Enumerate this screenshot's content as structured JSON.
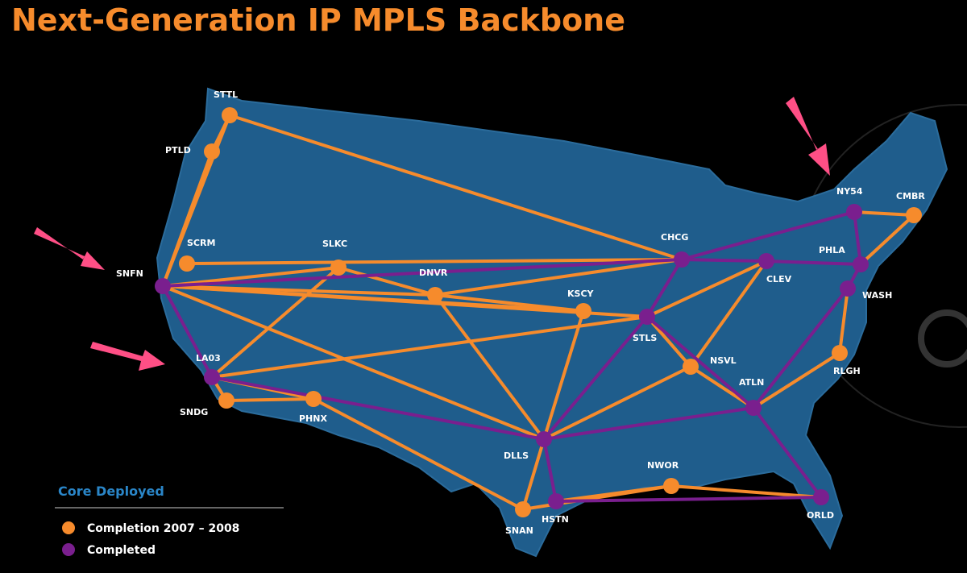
{
  "title": "Next-Generation IP MPLS Backbone",
  "nodes": [
    {
      "label": "STTL"
    },
    {
      "label": "PTLD"
    },
    {
      "label": "SCRM"
    },
    {
      "label": "SNFN"
    },
    {
      "label": "SLKC"
    },
    {
      "label": "DNVR"
    },
    {
      "label": "LA03"
    },
    {
      "label": "SNDG"
    },
    {
      "label": "PHNX"
    },
    {
      "label": "KSCY"
    },
    {
      "label": "CHCG"
    },
    {
      "label": "STLS"
    },
    {
      "label": "CLEV"
    },
    {
      "label": "NY54"
    },
    {
      "label": "CMBR"
    },
    {
      "label": "PHLA"
    },
    {
      "label": "WASH"
    },
    {
      "label": "RLGH"
    },
    {
      "label": "NSVL"
    },
    {
      "label": "ATLN"
    },
    {
      "label": "DLLS"
    },
    {
      "label": "HSTN"
    },
    {
      "label": "SNAN"
    },
    {
      "label": "NWOR"
    },
    {
      "label": "ORLD"
    }
  ],
  "legend": {
    "title": "Core Deployed",
    "items": [
      {
        "label": "Completion 2007 – 2008",
        "color": "#f68b2c"
      },
      {
        "label": "Completed",
        "color": "#7a1f8e"
      }
    ]
  }
}
